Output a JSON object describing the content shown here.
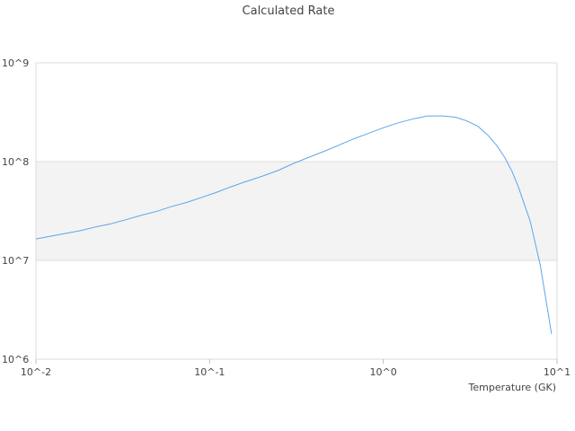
{
  "chart_data": {
    "type": "line",
    "title": "Calculated Rate",
    "xlabel": "Temperature (GK)",
    "ylabel": "",
    "x_scale": "log",
    "y_scale": "log",
    "xlim": [
      0.01,
      10
    ],
    "ylim": [
      1000000,
      1000000000
    ],
    "x_ticks": [
      {
        "value": 0.01,
        "label": "10^-2"
      },
      {
        "value": 0.1,
        "label": "10^-1"
      },
      {
        "value": 1,
        "label": "10^0"
      },
      {
        "value": 10,
        "label": "10^1"
      }
    ],
    "y_ticks": [
      {
        "value": 1000000,
        "label": "10^6"
      },
      {
        "value": 10000000,
        "label": "10^7"
      },
      {
        "value": 100000000,
        "label": "10^8"
      },
      {
        "value": 1000000000,
        "label": "10^9"
      }
    ],
    "bands": [
      {
        "from": 10000000,
        "to": 100000000,
        "color": "#f3f3f3"
      }
    ],
    "grid": true,
    "legend": "none",
    "series_color": "#5ea5e8",
    "series": [
      {
        "x": [
          0.01,
          0.012,
          0.015,
          0.018,
          0.022,
          0.027,
          0.033,
          0.04,
          0.05,
          0.06,
          0.075,
          0.09,
          0.11,
          0.13,
          0.16,
          0.2,
          0.25,
          0.3,
          0.37,
          0.45,
          0.55,
          0.67,
          0.8,
          1.0,
          1.2,
          1.5,
          1.8,
          2.2,
          2.6,
          3.0,
          3.5,
          4.0,
          4.5,
          5.0,
          5.5,
          6.0,
          7.0,
          8.0,
          9.3
        ],
        "y": [
          16500000,
          17500000,
          18800000,
          20000000,
          21800000,
          23500000,
          25800000,
          28500000,
          31500000,
          35000000,
          39000000,
          43500000,
          49000000,
          55000000,
          62500000,
          71000000,
          82000000,
          95000000,
          110000000,
          126000000,
          146000000,
          169000000,
          190000000,
          220000000,
          245000000,
          272000000,
          290000000,
          290000000,
          282000000,
          260000000,
          228000000,
          185000000,
          145000000,
          110000000,
          80000000,
          55000000,
          25000000,
          9000000,
          1800000
        ]
      }
    ]
  }
}
